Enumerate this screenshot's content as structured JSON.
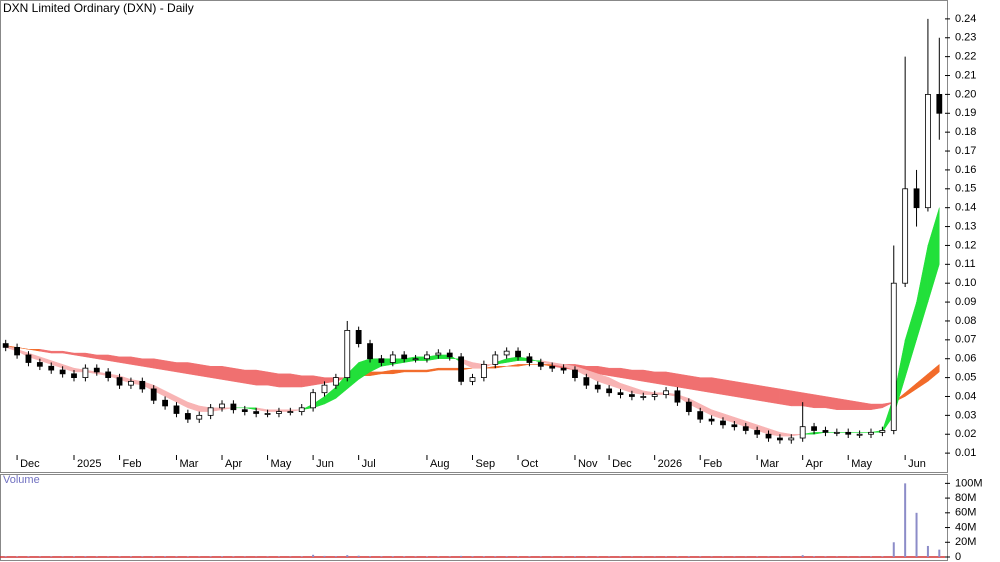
{
  "chart_data": [
    {
      "type": "candlestick",
      "title": "DXN Limited Ordinary (DXN) - Daily",
      "categories": [
        null,
        "Dec",
        null,
        null,
        null,
        null,
        "2025",
        null,
        null,
        null,
        "Feb",
        null,
        null,
        null,
        null,
        "Mar",
        null,
        null,
        null,
        "Apr",
        null,
        null,
        null,
        "May",
        null,
        null,
        null,
        "Jun",
        null,
        null,
        null,
        "Jul",
        null,
        null,
        null,
        null,
        null,
        "Aug",
        null,
        null,
        null,
        "Sep",
        null,
        null,
        null,
        "Oct",
        null,
        null,
        null,
        null,
        "Nov",
        null,
        null,
        "Dec",
        null,
        null,
        null,
        "2026",
        null,
        null,
        null,
        "Feb",
        null,
        null,
        null,
        null,
        "Mar",
        null,
        null,
        null,
        "Apr",
        null,
        null,
        null,
        "May",
        null,
        null,
        null,
        null,
        "Jun",
        null,
        null,
        null
      ],
      "open": [
        0.068,
        0.066,
        0.062,
        0.058,
        0.056,
        0.054,
        0.052,
        0.05,
        0.055,
        0.053,
        0.05,
        0.046,
        0.048,
        0.044,
        0.038,
        0.035,
        0.031,
        0.028,
        0.03,
        0.034,
        0.036,
        0.033,
        0.032,
        0.031,
        0.031,
        0.032,
        0.032,
        0.034,
        0.042,
        0.046,
        0.05,
        0.075,
        0.068,
        0.06,
        0.058,
        0.062,
        0.06,
        0.06,
        0.062,
        0.063,
        0.061,
        0.048,
        0.05,
        0.057,
        0.062,
        0.064,
        0.061,
        0.058,
        0.056,
        0.055,
        0.054,
        0.05,
        0.046,
        0.044,
        0.042,
        0.041,
        0.04,
        0.04,
        0.041,
        0.043,
        0.037,
        0.032,
        0.028,
        0.027,
        0.025,
        0.024,
        0.022,
        0.02,
        0.018,
        0.017,
        0.018,
        0.024,
        0.022,
        0.021,
        0.021,
        0.02,
        0.02,
        0.021,
        0.022,
        0.1,
        0.15,
        0.14,
        0.2
      ],
      "high": [
        0.07,
        0.068,
        0.064,
        0.06,
        0.058,
        0.056,
        0.054,
        0.057,
        0.057,
        0.055,
        0.052,
        0.05,
        0.05,
        0.046,
        0.04,
        0.037,
        0.033,
        0.032,
        0.036,
        0.038,
        0.038,
        0.035,
        0.034,
        0.033,
        0.034,
        0.034,
        0.036,
        0.044,
        0.048,
        0.052,
        0.08,
        0.077,
        0.07,
        0.062,
        0.064,
        0.064,
        0.062,
        0.064,
        0.065,
        0.065,
        0.063,
        0.052,
        0.059,
        0.064,
        0.066,
        0.066,
        0.063,
        0.06,
        0.058,
        0.057,
        0.056,
        0.052,
        0.048,
        0.046,
        0.044,
        0.043,
        0.042,
        0.043,
        0.045,
        0.045,
        0.039,
        0.034,
        0.03,
        0.029,
        0.027,
        0.026,
        0.024,
        0.022,
        0.02,
        0.02,
        0.037,
        0.026,
        0.024,
        0.023,
        0.023,
        0.022,
        0.023,
        0.024,
        0.12,
        0.22,
        0.16,
        0.24,
        0.23
      ],
      "low": [
        0.064,
        0.06,
        0.056,
        0.054,
        0.052,
        0.05,
        0.048,
        0.048,
        0.051,
        0.048,
        0.044,
        0.044,
        0.042,
        0.036,
        0.033,
        0.029,
        0.026,
        0.026,
        0.028,
        0.032,
        0.031,
        0.03,
        0.029,
        0.029,
        0.029,
        0.03,
        0.03,
        0.032,
        0.04,
        0.044,
        0.048,
        0.066,
        0.058,
        0.056,
        0.056,
        0.058,
        0.058,
        0.058,
        0.06,
        0.059,
        0.046,
        0.046,
        0.048,
        0.055,
        0.06,
        0.059,
        0.056,
        0.054,
        0.053,
        0.052,
        0.048,
        0.044,
        0.042,
        0.04,
        0.039,
        0.038,
        0.038,
        0.038,
        0.039,
        0.035,
        0.03,
        0.026,
        0.025,
        0.023,
        0.022,
        0.02,
        0.018,
        0.016,
        0.015,
        0.015,
        0.016,
        0.02,
        0.019,
        0.019,
        0.018,
        0.018,
        0.018,
        0.019,
        0.02,
        0.098,
        0.13,
        0.138,
        0.176
      ],
      "close": [
        0.066,
        0.062,
        0.058,
        0.056,
        0.054,
        0.052,
        0.05,
        0.055,
        0.053,
        0.05,
        0.046,
        0.048,
        0.044,
        0.038,
        0.035,
        0.031,
        0.028,
        0.03,
        0.034,
        0.036,
        0.033,
        0.032,
        0.031,
        0.031,
        0.032,
        0.032,
        0.034,
        0.042,
        0.046,
        0.05,
        0.075,
        0.068,
        0.06,
        0.058,
        0.062,
        0.06,
        0.06,
        0.062,
        0.063,
        0.061,
        0.048,
        0.05,
        0.057,
        0.062,
        0.064,
        0.061,
        0.058,
        0.056,
        0.055,
        0.054,
        0.05,
        0.046,
        0.044,
        0.042,
        0.041,
        0.04,
        0.04,
        0.041,
        0.043,
        0.037,
        0.032,
        0.028,
        0.027,
        0.025,
        0.024,
        0.022,
        0.02,
        0.018,
        0.017,
        0.018,
        0.024,
        0.022,
        0.021,
        0.021,
        0.02,
        0.02,
        0.021,
        0.022,
        0.1,
        0.15,
        0.14,
        0.2,
        0.19
      ],
      "bands": [
        {
          "a": [
            0.067,
            0.066,
            0.065,
            0.064,
            0.063,
            0.063,
            0.062,
            0.061,
            0.06,
            0.059,
            0.058,
            0.057,
            0.056,
            0.055,
            0.054,
            0.053,
            0.052,
            0.051,
            0.05,
            0.049,
            0.048,
            0.047,
            0.046,
            0.046,
            0.045,
            0.045,
            0.045,
            0.046,
            0.047,
            0.048,
            0.05,
            0.052,
            0.053,
            0.053,
            0.054,
            0.054,
            0.054,
            0.054,
            0.055,
            0.055,
            0.055,
            0.055,
            0.055,
            0.056,
            0.056,
            0.057,
            0.057,
            0.057,
            0.056,
            0.055,
            0.054,
            0.053,
            0.052,
            0.051,
            0.05,
            0.049,
            0.048,
            0.047,
            0.046,
            0.045,
            0.044,
            0.043,
            0.042,
            0.041,
            0.04,
            0.039,
            0.038,
            0.037,
            0.036,
            0.035,
            0.035,
            0.034,
            0.034,
            0.033,
            0.033,
            0.033,
            0.033,
            0.034,
            0.037,
            0.042,
            0.047,
            0.052,
            0.057
          ],
          "b": [
            0.066,
            0.066,
            0.065,
            0.065,
            0.064,
            0.064,
            0.063,
            0.063,
            0.062,
            0.062,
            0.061,
            0.061,
            0.06,
            0.06,
            0.059,
            0.058,
            0.058,
            0.057,
            0.056,
            0.056,
            0.055,
            0.054,
            0.054,
            0.053,
            0.052,
            0.052,
            0.051,
            0.051,
            0.05,
            0.05,
            0.05,
            0.051,
            0.051,
            0.052,
            0.052,
            0.053,
            0.053,
            0.053,
            0.054,
            0.054,
            0.054,
            0.055,
            0.055,
            0.055,
            0.056,
            0.056,
            0.057,
            0.057,
            0.057,
            0.057,
            0.057,
            0.056,
            0.056,
            0.055,
            0.055,
            0.054,
            0.054,
            0.053,
            0.053,
            0.052,
            0.051,
            0.05,
            0.05,
            0.049,
            0.048,
            0.047,
            0.046,
            0.045,
            0.044,
            0.043,
            0.042,
            0.041,
            0.04,
            0.039,
            0.038,
            0.037,
            0.036,
            0.036,
            0.037,
            0.04,
            0.044,
            0.048,
            0.053
          ],
          "up_color": "#f26b2a",
          "down_color": "#f07070"
        },
        {
          "a": [
            0.066,
            0.064,
            0.061,
            0.059,
            0.057,
            0.055,
            0.053,
            0.053,
            0.052,
            0.051,
            0.049,
            0.047,
            0.046,
            0.043,
            0.04,
            0.037,
            0.034,
            0.032,
            0.032,
            0.033,
            0.034,
            0.034,
            0.033,
            0.032,
            0.032,
            0.032,
            0.033,
            0.036,
            0.04,
            0.045,
            0.052,
            0.058,
            0.06,
            0.06,
            0.06,
            0.06,
            0.061,
            0.061,
            0.062,
            0.062,
            0.058,
            0.055,
            0.055,
            0.058,
            0.06,
            0.061,
            0.06,
            0.058,
            0.057,
            0.056,
            0.054,
            0.051,
            0.048,
            0.046,
            0.044,
            0.042,
            0.041,
            0.041,
            0.041,
            0.04,
            0.036,
            0.033,
            0.03,
            0.028,
            0.026,
            0.024,
            0.022,
            0.02,
            0.019,
            0.019,
            0.02,
            0.021,
            0.021,
            0.021,
            0.021,
            0.021,
            0.021,
            0.022,
            0.04,
            0.07,
            0.09,
            0.12,
            0.14
          ],
          "b": [
            0.067,
            0.065,
            0.063,
            0.061,
            0.059,
            0.057,
            0.055,
            0.054,
            0.053,
            0.052,
            0.051,
            0.049,
            0.048,
            0.046,
            0.043,
            0.04,
            0.037,
            0.035,
            0.034,
            0.034,
            0.034,
            0.034,
            0.034,
            0.033,
            0.033,
            0.033,
            0.033,
            0.034,
            0.036,
            0.039,
            0.044,
            0.049,
            0.053,
            0.056,
            0.057,
            0.058,
            0.059,
            0.059,
            0.06,
            0.06,
            0.06,
            0.058,
            0.057,
            0.057,
            0.058,
            0.059,
            0.059,
            0.059,
            0.058,
            0.057,
            0.056,
            0.054,
            0.052,
            0.05,
            0.047,
            0.045,
            0.043,
            0.042,
            0.042,
            0.041,
            0.039,
            0.036,
            0.033,
            0.031,
            0.029,
            0.027,
            0.025,
            0.023,
            0.021,
            0.02,
            0.02,
            0.02,
            0.021,
            0.021,
            0.021,
            0.021,
            0.021,
            0.021,
            0.03,
            0.05,
            0.07,
            0.09,
            0.11
          ],
          "up_color": "#22e03a",
          "down_color": "#f8b4b4"
        }
      ],
      "ylim": [
        0,
        0.25
      ],
      "yticks": [
        0.01,
        0.02,
        0.03,
        0.04,
        0.05,
        0.06,
        0.07,
        0.08,
        0.09,
        {
          "value": 0.1,
          "label": "0.10"
        },
        0.11,
        0.12,
        0.13,
        0.14,
        0.15,
        0.16,
        0.17,
        0.18,
        0.19,
        {
          "value": 0.2,
          "label": "0.20"
        },
        0.21,
        0.22,
        0.23,
        0.24
      ]
    },
    {
      "type": "bar",
      "title": "Volume",
      "color": "#8c8cc8",
      "values": [
        800000,
        600000,
        700000,
        500000,
        600000,
        500000,
        700000,
        900000,
        600000,
        500000,
        600000,
        700000,
        600000,
        800000,
        900000,
        700000,
        600000,
        500000,
        700000,
        800000,
        600000,
        500000,
        400000,
        500000,
        600000,
        500000,
        700000,
        3000000,
        1500000,
        1200000,
        2500000,
        1800000,
        1000000,
        800000,
        900000,
        700000,
        600000,
        700000,
        800000,
        600000,
        1500000,
        900000,
        800000,
        900000,
        1000000,
        800000,
        700000,
        600000,
        500000,
        600000,
        900000,
        700000,
        600000,
        500000,
        600000,
        500000,
        400000,
        500000,
        600000,
        700000,
        800000,
        600000,
        500000,
        400000,
        500000,
        400000,
        600000,
        500000,
        400000,
        500000,
        2500000,
        900000,
        600000,
        500000,
        400000,
        500000,
        600000,
        700000,
        20000000,
        100000000,
        60000000,
        15000000,
        10000000
      ],
      "ylim": [
        0,
        110000000
      ],
      "yticks": [
        0,
        {
          "value": 20000000,
          "label": "20M"
        },
        {
          "value": 40000000,
          "label": "40M"
        },
        {
          "value": 60000000,
          "label": "60M"
        },
        {
          "value": 80000000,
          "label": "80M"
        },
        {
          "value": 100000000,
          "label": "100M"
        }
      ]
    }
  ]
}
